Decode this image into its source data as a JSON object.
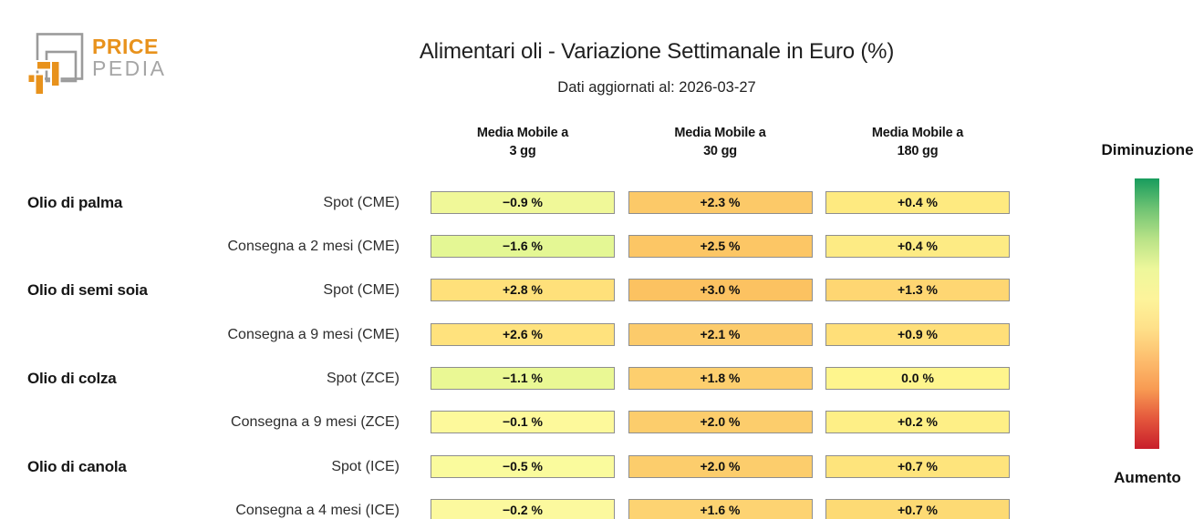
{
  "logo": {
    "line1": "PRICE",
    "line2": "PEDIA",
    "orange": "#E8921C",
    "gray": "#9B9B9B",
    "pedia_gray": "#A6A6A6"
  },
  "header": {
    "title": "Alimentari oli - Variazione Settimanale in Euro (%)",
    "subtitle": "Dati aggiornati al: 2026-03-27"
  },
  "legend": {
    "top_label": "Diminuzione",
    "bottom_label": "Aumento",
    "gradient": [
      "#189C5D",
      "#6FC373",
      "#B8E287",
      "#EDF79B",
      "#FDF49B",
      "#FEE089",
      "#FDBE6E",
      "#F89B53",
      "#E4573C",
      "#C81E2B"
    ]
  },
  "chart_data": {
    "type": "heatmap",
    "title": "Alimentari oli - Variazione Settimanale in Euro (%)",
    "subtitle": "Dati aggiornati al: 2026-03-27",
    "value_unit": "%",
    "legend": {
      "top": "Diminuzione",
      "bottom": "Aumento"
    },
    "columns": [
      {
        "label": "Media Mobile a 3 gg",
        "top": "Media Mobile a",
        "bottom": "3 gg"
      },
      {
        "label": "Media Mobile a 30 gg",
        "top": "Media Mobile a",
        "bottom": "30 gg"
      },
      {
        "label": "Media Mobile a 180 gg",
        "top": "Media Mobile a",
        "bottom": "180 gg"
      }
    ],
    "groups": [
      {
        "name": "Olio di palma",
        "rows": [
          {
            "label": "Spot (CME)",
            "values": [
              -0.9,
              2.3,
              0.4
            ],
            "display": [
              "−0.9 %",
              "+2.3 %",
              "+0.4 %"
            ],
            "colors": [
              "#F0F898",
              "#FCC968",
              "#FEEA80"
            ]
          },
          {
            "label": "Consegna a 2 mesi (CME)",
            "values": [
              -1.6,
              2.5,
              0.4
            ],
            "display": [
              "−1.6 %",
              "+2.5 %",
              "+0.4 %"
            ],
            "colors": [
              "#E4F794",
              "#FCC665",
              "#FDEB84"
            ]
          }
        ]
      },
      {
        "name": "Olio di semi soia",
        "rows": [
          {
            "label": "Spot (CME)",
            "values": [
              2.8,
              3.0,
              1.3
            ],
            "display": [
              "+2.8 %",
              "+3.0 %",
              "+1.3 %"
            ],
            "colors": [
              "#FFE07A",
              "#FCC261",
              "#FED672"
            ]
          },
          {
            "label": "Consegna a 9 mesi (CME)",
            "values": [
              2.6,
              2.1,
              0.9
            ],
            "display": [
              "+2.6 %",
              "+2.1 %",
              "+0.9 %"
            ],
            "colors": [
              "#FFE27D",
              "#FCCB6B",
              "#FFDF79"
            ]
          }
        ]
      },
      {
        "name": "Olio di colza",
        "rows": [
          {
            "label": "Spot (ZCE)",
            "values": [
              -1.1,
              1.8,
              0.0
            ],
            "display": [
              "−1.1 %",
              "+1.8 %",
              "0.0 %"
            ],
            "colors": [
              "#EAF894",
              "#FDCF6E",
              "#FEF58D"
            ]
          },
          {
            "label": "Consegna a 9 mesi (ZCE)",
            "values": [
              -0.1,
              2.0,
              0.2
            ],
            "display": [
              "−0.1 %",
              "+2.0 %",
              "+0.2 %"
            ],
            "colors": [
              "#FDF99B",
              "#FCCD6C",
              "#FEEF86"
            ]
          }
        ]
      },
      {
        "name": "Olio di canola",
        "rows": [
          {
            "label": "Spot (ICE)",
            "values": [
              -0.5,
              2.0,
              0.7
            ],
            "display": [
              "−0.5 %",
              "+2.0 %",
              "+0.7 %"
            ],
            "colors": [
              "#FAFB9D",
              "#FCCD6C",
              "#FEE47C"
            ]
          },
          {
            "label": "Consegna a 4 mesi (ICE)",
            "values": [
              -0.2,
              1.6,
              0.7
            ],
            "display": [
              "−0.2 %",
              "+1.6 %",
              "+0.7 %"
            ],
            "colors": [
              "#FCF99E",
              "#FDD372",
              "#FDDA74"
            ]
          }
        ]
      }
    ]
  }
}
